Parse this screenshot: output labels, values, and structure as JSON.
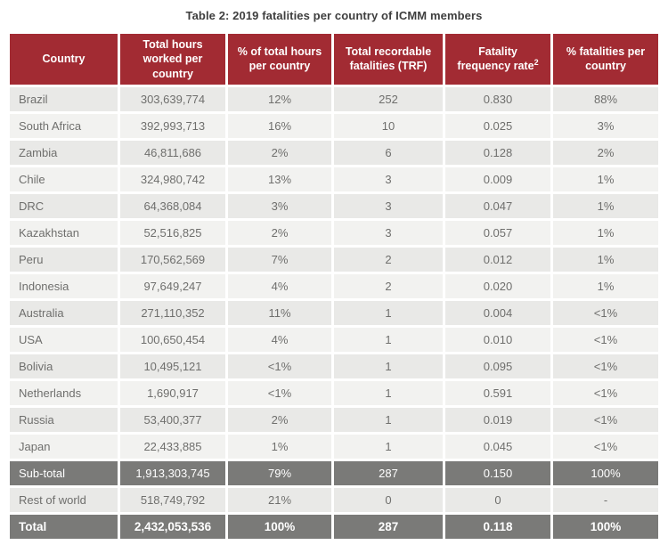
{
  "title": "Table 2: 2019 fatalities per country of ICMM members",
  "colors": {
    "header_bg": "#a22b33",
    "header_text": "#ffffff",
    "row_dark_bg": "#e9e9e7",
    "row_light_bg": "#f2f2f0",
    "summary_row_bg": "#7a7a78",
    "cell_text": "#6f6f6d",
    "title_text": "#3e3e3e",
    "grid_gap": "#ffffff"
  },
  "table": {
    "headers": [
      {
        "label": "Country"
      },
      {
        "label": "Total hours worked per country"
      },
      {
        "label": "% of total hours per country"
      },
      {
        "label": "Total recordable fatalities (TRF)"
      },
      {
        "label": "Fatality frequency rate",
        "sup": "2"
      },
      {
        "label": "% fatalities per country"
      }
    ],
    "rows": [
      {
        "country": "Brazil",
        "values": [
          "303,639,774",
          "12%",
          "252",
          "0.830",
          "88%"
        ],
        "variant": "dark"
      },
      {
        "country": "South Africa",
        "values": [
          "392,993,713",
          "16%",
          "10",
          "0.025",
          "3%"
        ],
        "variant": "light"
      },
      {
        "country": "Zambia",
        "values": [
          "46,811,686",
          "2%",
          "6",
          "0.128",
          "2%"
        ],
        "variant": "dark"
      },
      {
        "country": "Chile",
        "values": [
          "324,980,742",
          "13%",
          "3",
          "0.009",
          "1%"
        ],
        "variant": "light"
      },
      {
        "country": "DRC",
        "values": [
          "64,368,084",
          "3%",
          "3",
          "0.047",
          "1%"
        ],
        "variant": "dark"
      },
      {
        "country": "Kazakhstan",
        "values": [
          "52,516,825",
          "2%",
          "3",
          "0.057",
          "1%"
        ],
        "variant": "light"
      },
      {
        "country": "Peru",
        "values": [
          "170,562,569",
          "7%",
          "2",
          "0.012",
          "1%"
        ],
        "variant": "dark"
      },
      {
        "country": "Indonesia",
        "values": [
          "97,649,247",
          "4%",
          "2",
          "0.020",
          "1%"
        ],
        "variant": "light"
      },
      {
        "country": "Australia",
        "values": [
          "271,110,352",
          "11%",
          "1",
          "0.004",
          "<1%"
        ],
        "variant": "dark"
      },
      {
        "country": "USA",
        "values": [
          "100,650,454",
          "4%",
          "1",
          "0.010",
          "<1%"
        ],
        "variant": "light"
      },
      {
        "country": "Bolivia",
        "values": [
          "10,495,121",
          "<1%",
          "1",
          "0.095",
          "<1%"
        ],
        "variant": "dark"
      },
      {
        "country": "Netherlands",
        "values": [
          "1,690,917",
          "<1%",
          "1",
          "0.591",
          "<1%"
        ],
        "variant": "light"
      },
      {
        "country": "Russia",
        "values": [
          "53,400,377",
          "2%",
          "1",
          "0.019",
          "<1%"
        ],
        "variant": "dark"
      },
      {
        "country": "Japan",
        "values": [
          "22,433,885",
          "1%",
          "1",
          "0.045",
          "<1%"
        ],
        "variant": "light"
      },
      {
        "country": "Sub-total",
        "values": [
          "1,913,303,745",
          "79%",
          "287",
          "0.150",
          "100%"
        ],
        "variant": "gray"
      },
      {
        "country": "Rest of world",
        "values": [
          "518,749,792",
          "21%",
          "0",
          "0",
          "-"
        ],
        "variant": "dark"
      },
      {
        "country": "Total",
        "values": [
          "2,432,053,536",
          "100%",
          "287",
          "0.118",
          "100%"
        ],
        "variant": "gray-bold"
      }
    ]
  }
}
